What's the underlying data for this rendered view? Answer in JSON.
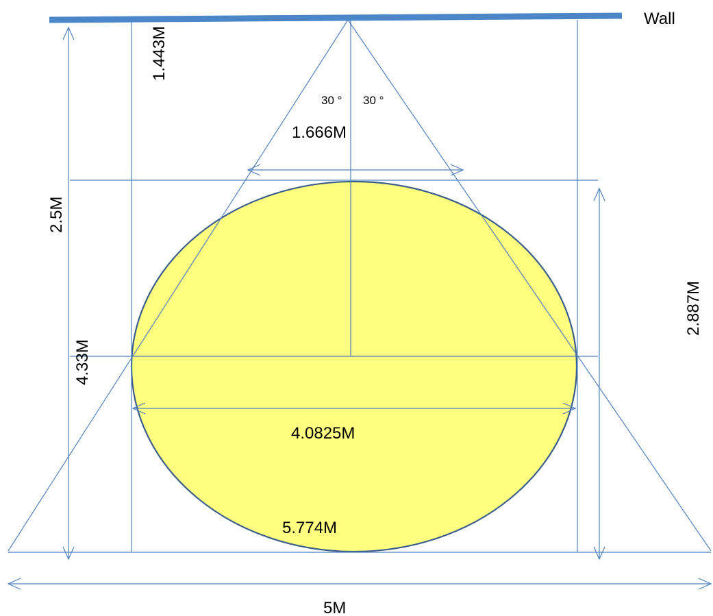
{
  "diagram": {
    "colors": {
      "wall": "#4a86c8",
      "line": "#4f81bd",
      "ellipse_fill": "#ffff80",
      "ellipse_stroke": "#3b5f8a"
    },
    "labels": {
      "wall": "Wall",
      "angle_left": "30 °",
      "angle_right": "30 °",
      "top_offset": "1.443M",
      "mid_width": "1.666M",
      "upper_height": "2.5M",
      "lower_height": "4.33M",
      "ellipse_height": "2.887M",
      "ellipse_width": "4.0825M",
      "base_width": "5.774M",
      "total_width": "5M"
    }
  }
}
